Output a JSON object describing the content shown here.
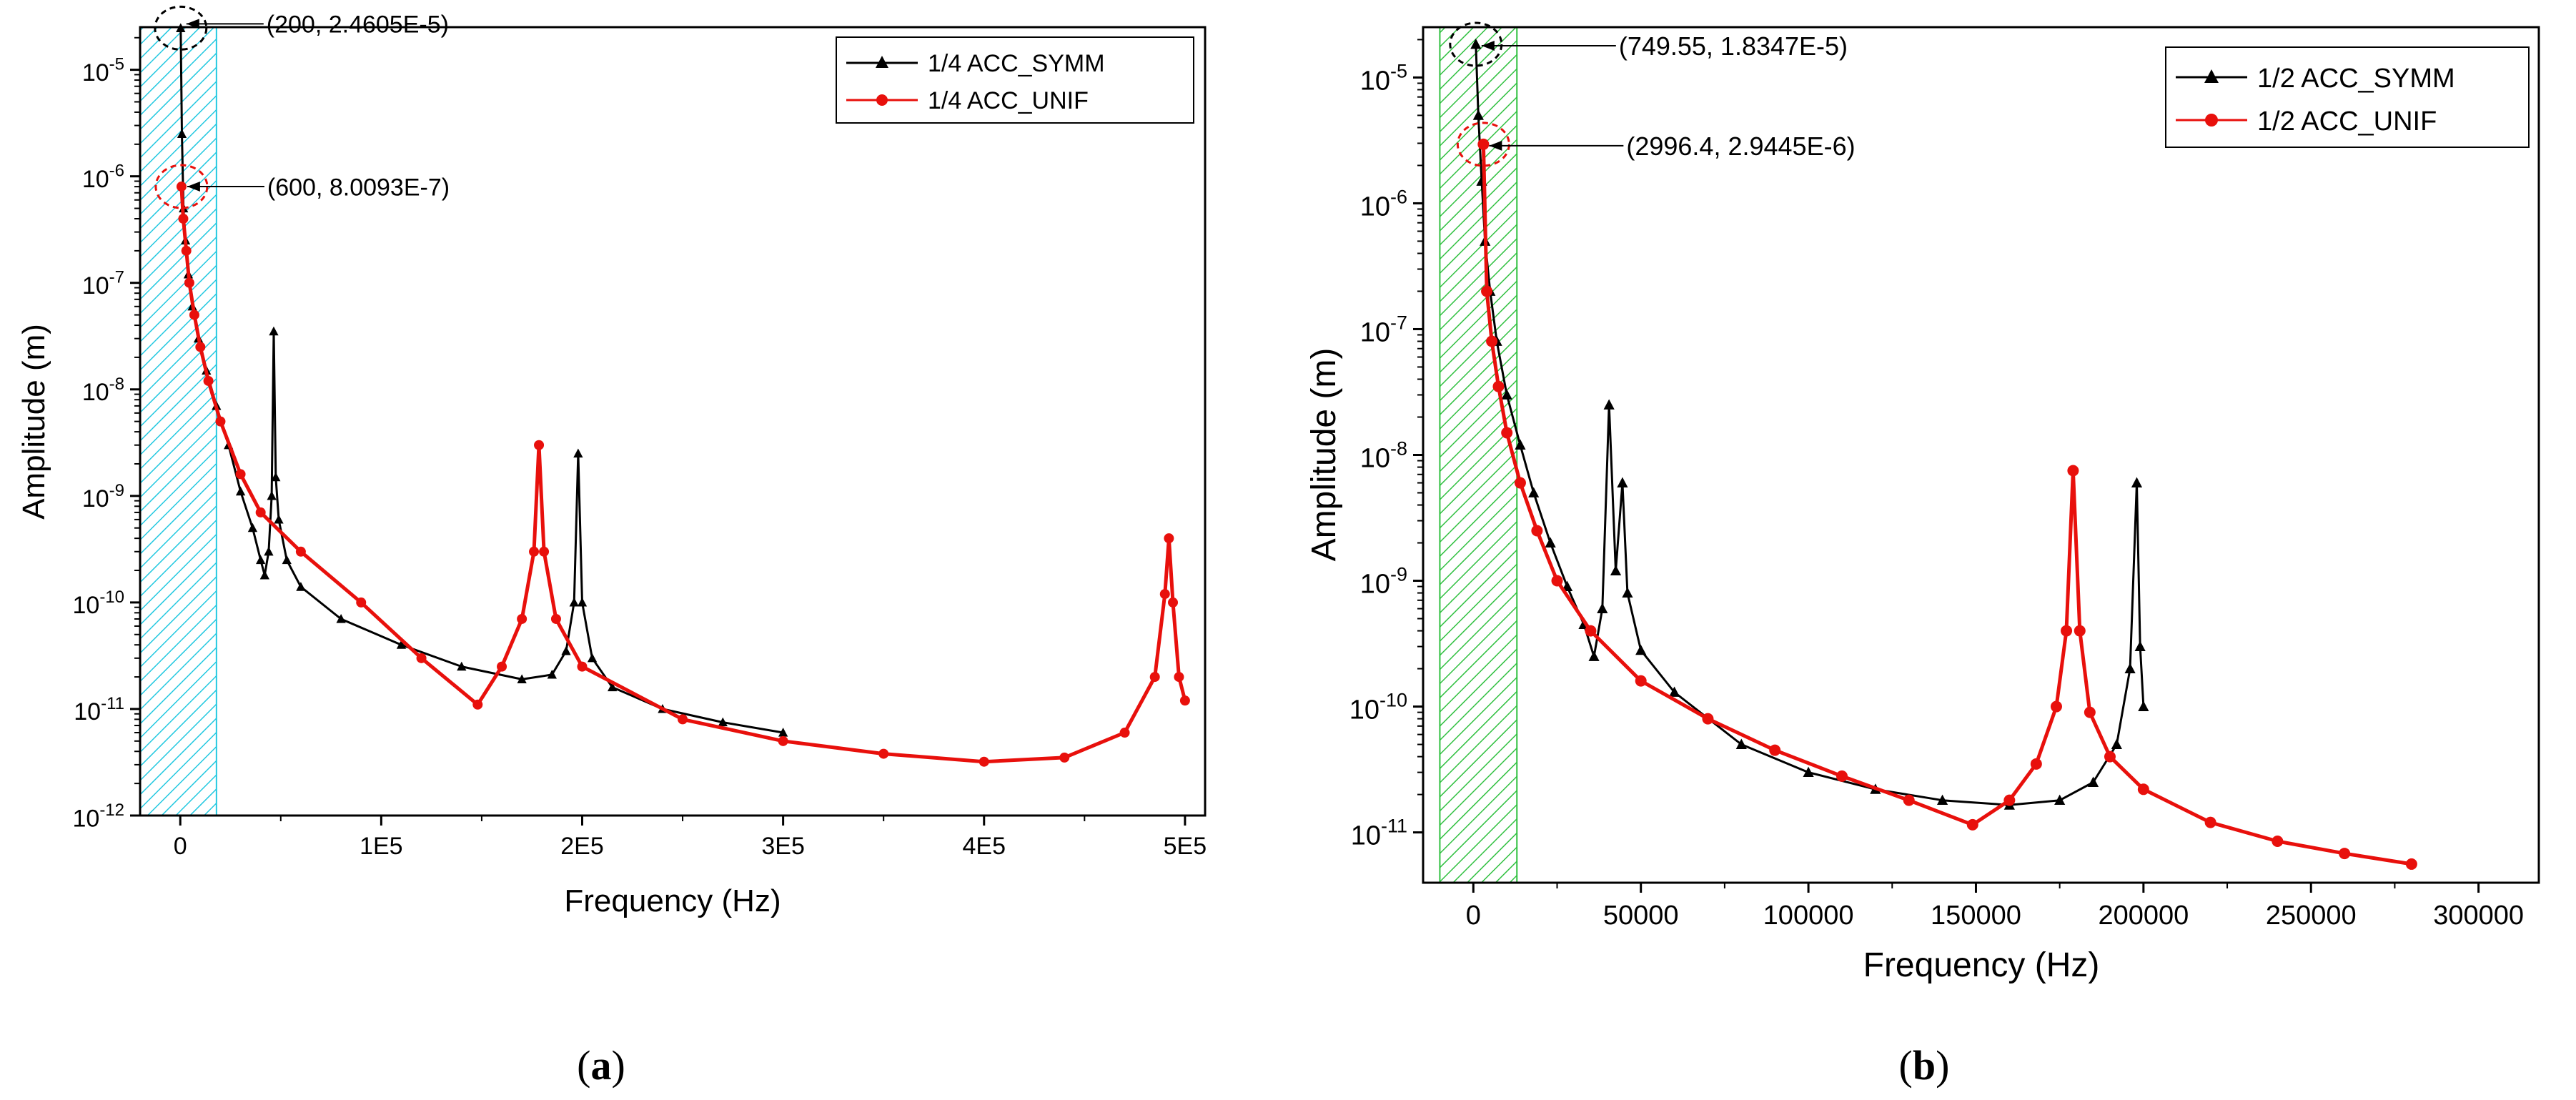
{
  "chart_data": [
    {
      "type": "line",
      "panel_label": "a",
      "xlabel": "Frequency (Hz)",
      "ylabel": "Amplitude (m)",
      "xlim": [
        -20000,
        510000
      ],
      "ylim_log10": [
        -12,
        -4.6
      ],
      "x_ticks": [
        0,
        100000,
        200000,
        300000,
        400000,
        500000
      ],
      "x_tick_labels": [
        "0",
        "1E5",
        "2E5",
        "3E5",
        "4E5",
        "5E5"
      ],
      "y_ticks": [
        -12,
        -11,
        -10,
        -9,
        -8,
        -7,
        -6,
        -5
      ],
      "y_tick_bases": [
        "10",
        "10",
        "10",
        "10",
        "10",
        "10",
        "10",
        "10"
      ],
      "y_tick_exps": [
        "-12",
        "-11",
        "-10",
        "-9",
        "-8",
        "-7",
        "-6",
        "-5"
      ],
      "highlight_band": {
        "x0": -20000,
        "x1": 18000,
        "color": "#22c8e0"
      },
      "legend": {
        "position": "top-right"
      },
      "series": [
        {
          "name": "1/4 ACC_SYMM",
          "color": "#000000",
          "marker": "triangle",
          "points": [
            [
              200,
              2.4605e-05
            ],
            [
              800,
              2.5e-06
            ],
            [
              1600,
              5e-07
            ],
            [
              2600,
              2.5e-07
            ],
            [
              4000,
              1.2e-07
            ],
            [
              6000,
              6e-08
            ],
            [
              9000,
              3e-08
            ],
            [
              13000,
              1.5e-08
            ],
            [
              18000,
              7e-09
            ],
            [
              24000,
              3e-09
            ],
            [
              30000,
              1.1e-09
            ],
            [
              36000,
              5e-10
            ],
            [
              40000,
              2.5e-10
            ],
            [
              42000,
              1.8e-10
            ],
            [
              44000,
              3e-10
            ],
            [
              45500,
              1e-09
            ],
            [
              46500,
              3.5e-08
            ],
            [
              47500,
              1.5e-09
            ],
            [
              49000,
              6e-10
            ],
            [
              53000,
              2.5e-10
            ],
            [
              60000,
              1.4e-10
            ],
            [
              80000,
              7e-11
            ],
            [
              110000,
              4e-11
            ],
            [
              140000,
              2.5e-11
            ],
            [
              170000,
              1.9e-11
            ],
            [
              185000,
              2.1e-11
            ],
            [
              192000,
              3.5e-11
            ],
            [
              196000,
              1e-10
            ],
            [
              198000,
              2.5e-09
            ],
            [
              200000,
              1e-10
            ],
            [
              205000,
              3e-11
            ],
            [
              215000,
              1.6e-11
            ],
            [
              240000,
              1e-11
            ],
            [
              270000,
              7.5e-12
            ],
            [
              300000,
              6e-12
            ]
          ]
        },
        {
          "name": "1/4 ACC_UNIF",
          "color": "#e8100c",
          "marker": "circle",
          "points": [
            [
              600,
              8.0093e-07
            ],
            [
              1500,
              4e-07
            ],
            [
              3000,
              2e-07
            ],
            [
              4500,
              1e-07
            ],
            [
              7000,
              5e-08
            ],
            [
              10000,
              2.5e-08
            ],
            [
              14000,
              1.2e-08
            ],
            [
              20000,
              5e-09
            ],
            [
              30000,
              1.6e-09
            ],
            [
              40000,
              7e-10
            ],
            [
              60000,
              3e-10
            ],
            [
              90000,
              1e-10
            ],
            [
              120000,
              3e-11
            ],
            [
              148000,
              1.1e-11
            ],
            [
              160000,
              2.5e-11
            ],
            [
              170000,
              7e-11
            ],
            [
              176000,
              3e-10
            ],
            [
              178500,
              3e-09
            ],
            [
              181000,
              3e-10
            ],
            [
              187000,
              7e-11
            ],
            [
              200000,
              2.5e-11
            ],
            [
              250000,
              8e-12
            ],
            [
              300000,
              5e-12
            ],
            [
              350000,
              3.8e-12
            ],
            [
              400000,
              3.2e-12
            ],
            [
              440000,
              3.5e-12
            ],
            [
              470000,
              6e-12
            ],
            [
              485000,
              2e-11
            ],
            [
              490000,
              1.2e-10
            ],
            [
              492000,
              4e-10
            ],
            [
              494000,
              1e-10
            ],
            [
              497000,
              2e-11
            ],
            [
              500000,
              1.2e-11
            ]
          ]
        }
      ],
      "annotations": [
        {
          "text": "(200, 2.4605E-5)",
          "x": 200,
          "y": 2.4605e-05,
          "color": "#000000"
        },
        {
          "text": "(600, 8.0093E-7)",
          "x": 600,
          "y": 8.0093e-07,
          "color": "#e8100c"
        }
      ]
    },
    {
      "type": "line",
      "panel_label": "b",
      "xlabel": "Frequency (Hz)",
      "ylabel": "Amplitude (m)",
      "xlim": [
        -15000,
        318000
      ],
      "ylim_log10": [
        -11.4,
        -4.6
      ],
      "x_ticks": [
        0,
        50000,
        100000,
        150000,
        200000,
        250000,
        300000
      ],
      "x_tick_labels": [
        "0",
        "50000",
        "100000",
        "150000",
        "200000",
        "250000",
        "300000"
      ],
      "y_ticks": [
        -11,
        -10,
        -9,
        -8,
        -7,
        -6,
        -5
      ],
      "y_tick_bases": [
        "10",
        "10",
        "10",
        "10",
        "10",
        "10",
        "10"
      ],
      "y_tick_exps": [
        "-11",
        "-10",
        "-9",
        "-8",
        "-7",
        "-6",
        "-5"
      ],
      "highlight_band": {
        "x0": -10000,
        "x1": 13000,
        "color": "#30c040"
      },
      "legend": {
        "position": "top-right"
      },
      "series": [
        {
          "name": "1/2 ACC_SYMM",
          "color": "#000000",
          "marker": "triangle",
          "points": [
            [
              749.55,
              1.8347e-05
            ],
            [
              1500,
              5e-06
            ],
            [
              2500,
              1.5e-06
            ],
            [
              3500,
              5e-07
            ],
            [
              5000,
              2e-07
            ],
            [
              7000,
              8e-08
            ],
            [
              10000,
              3e-08
            ],
            [
              14000,
              1.2e-08
            ],
            [
              18000,
              5e-09
            ],
            [
              23000,
              2e-09
            ],
            [
              28000,
              9e-10
            ],
            [
              33000,
              4.5e-10
            ],
            [
              36000,
              2.5e-10
            ],
            [
              38500,
              6e-10
            ],
            [
              40500,
              2.5e-08
            ],
            [
              42500,
              1.2e-09
            ],
            [
              44500,
              6e-09
            ],
            [
              46000,
              8e-10
            ],
            [
              50000,
              2.8e-10
            ],
            [
              60000,
              1.3e-10
            ],
            [
              80000,
              5e-11
            ],
            [
              100000,
              3e-11
            ],
            [
              120000,
              2.2e-11
            ],
            [
              140000,
              1.8e-11
            ],
            [
              160000,
              1.65e-11
            ],
            [
              175000,
              1.8e-11
            ],
            [
              185000,
              2.5e-11
            ],
            [
              192000,
              5e-11
            ],
            [
              196000,
              2e-10
            ],
            [
              198000,
              6e-09
            ],
            [
              199000,
              3e-10
            ],
            [
              200000,
              1e-10
            ]
          ]
        },
        {
          "name": "1/2 ACC_UNIF",
          "color": "#e8100c",
          "marker": "circle",
          "points": [
            [
              2996.4,
              2.9445e-06
            ],
            [
              4000,
              2e-07
            ],
            [
              5500,
              8e-08
            ],
            [
              7500,
              3.5e-08
            ],
            [
              10000,
              1.5e-08
            ],
            [
              14000,
              6e-09
            ],
            [
              19000,
              2.5e-09
            ],
            [
              25000,
              1e-09
            ],
            [
              35000,
              4e-10
            ],
            [
              50000,
              1.6e-10
            ],
            [
              70000,
              8e-11
            ],
            [
              90000,
              4.5e-11
            ],
            [
              110000,
              2.8e-11
            ],
            [
              130000,
              1.8e-11
            ],
            [
              149000,
              1.15e-11
            ],
            [
              160000,
              1.8e-11
            ],
            [
              168000,
              3.5e-11
            ],
            [
              174000,
              1e-10
            ],
            [
              177000,
              4e-10
            ],
            [
              179000,
              7.5e-09
            ],
            [
              181000,
              4e-10
            ],
            [
              184000,
              9e-11
            ],
            [
              190000,
              4e-11
            ],
            [
              200000,
              2.2e-11
            ],
            [
              220000,
              1.2e-11
            ],
            [
              240000,
              8.5e-12
            ],
            [
              260000,
              6.8e-12
            ],
            [
              280000,
              5.6e-12
            ]
          ]
        }
      ],
      "annotations": [
        {
          "text": "(749.55, 1.8347E-5)",
          "x": 749.55,
          "y": 1.8347e-05,
          "color": "#000000"
        },
        {
          "text": "(2996.4, 2.9445E-6)",
          "x": 2996.4,
          "y": 2.9445e-06,
          "color": "#e8100c"
        }
      ]
    }
  ]
}
